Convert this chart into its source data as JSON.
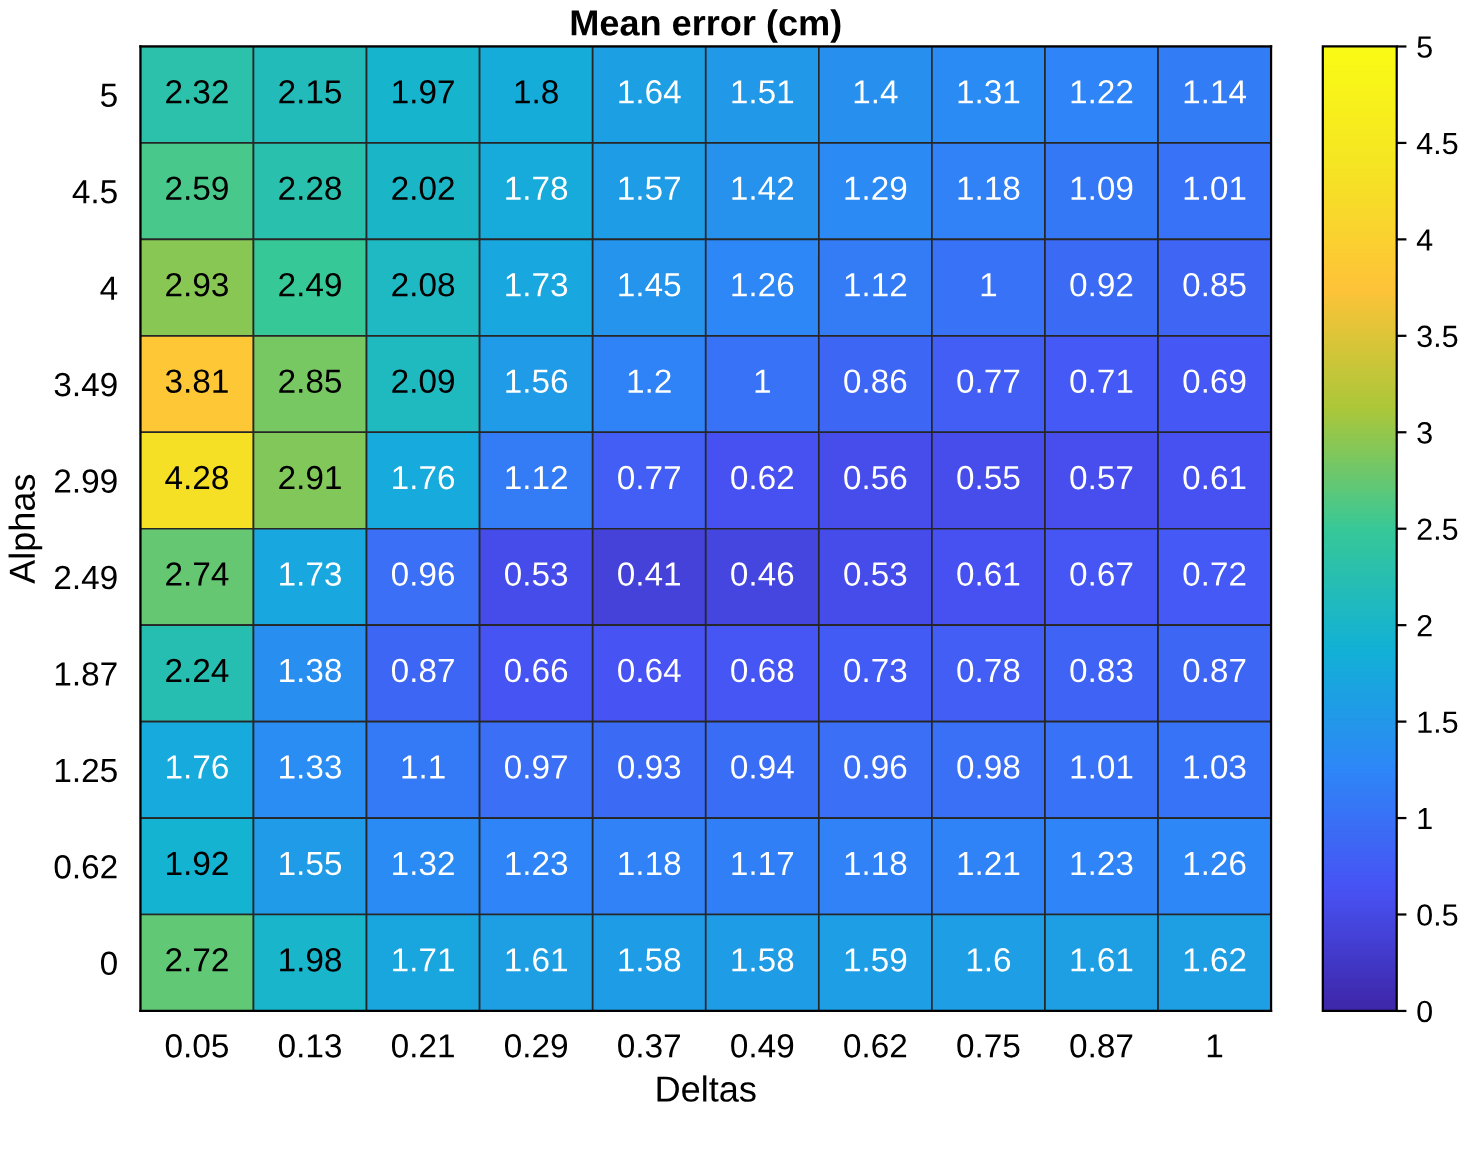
{
  "chart_data": {
    "type": "heatmap",
    "title": "Mean error (cm)",
    "xlabel": "Deltas",
    "ylabel": "Alphas",
    "categories": [
      "0.05",
      "0.13",
      "0.21",
      "0.29",
      "0.37",
      "0.49",
      "0.62",
      "0.75",
      "0.87",
      "1"
    ],
    "y_categories": [
      "5",
      "4.5",
      "4",
      "3.49",
      "2.99",
      "2.49",
      "1.87",
      "1.25",
      "0.62",
      "0"
    ],
    "cells": [
      [
        2.32,
        2.15,
        1.97,
        1.8,
        1.64,
        1.51,
        1.4,
        1.31,
        1.22,
        1.14
      ],
      [
        2.59,
        2.28,
        2.02,
        1.78,
        1.57,
        1.42,
        1.29,
        1.18,
        1.09,
        1.01
      ],
      [
        2.93,
        2.49,
        2.08,
        1.73,
        1.45,
        1.26,
        1.12,
        1,
        0.92,
        0.85
      ],
      [
        3.81,
        2.85,
        2.09,
        1.56,
        1.2,
        1,
        0.86,
        0.77,
        0.71,
        0.69
      ],
      [
        4.28,
        2.91,
        1.76,
        1.12,
        0.77,
        0.62,
        0.56,
        0.55,
        0.57,
        0.61
      ],
      [
        2.74,
        1.73,
        0.96,
        0.53,
        0.41,
        0.46,
        0.53,
        0.61,
        0.67,
        0.72
      ],
      [
        2.24,
        1.38,
        0.87,
        0.66,
        0.64,
        0.68,
        0.73,
        0.78,
        0.83,
        0.87
      ],
      [
        1.76,
        1.33,
        1.1,
        0.97,
        0.93,
        0.94,
        0.96,
        0.98,
        1.01,
        1.03
      ],
      [
        1.92,
        1.55,
        1.32,
        1.23,
        1.18,
        1.17,
        1.18,
        1.21,
        1.23,
        1.26
      ],
      [
        2.72,
        1.98,
        1.71,
        1.61,
        1.58,
        1.58,
        1.59,
        1.6,
        1.61,
        1.62
      ]
    ],
    "clim": [
      0,
      5
    ],
    "cticks": [
      0,
      0.5,
      1,
      1.5,
      2,
      2.5,
      3,
      3.5,
      4,
      4.5,
      5
    ],
    "data_labels": true
  }
}
